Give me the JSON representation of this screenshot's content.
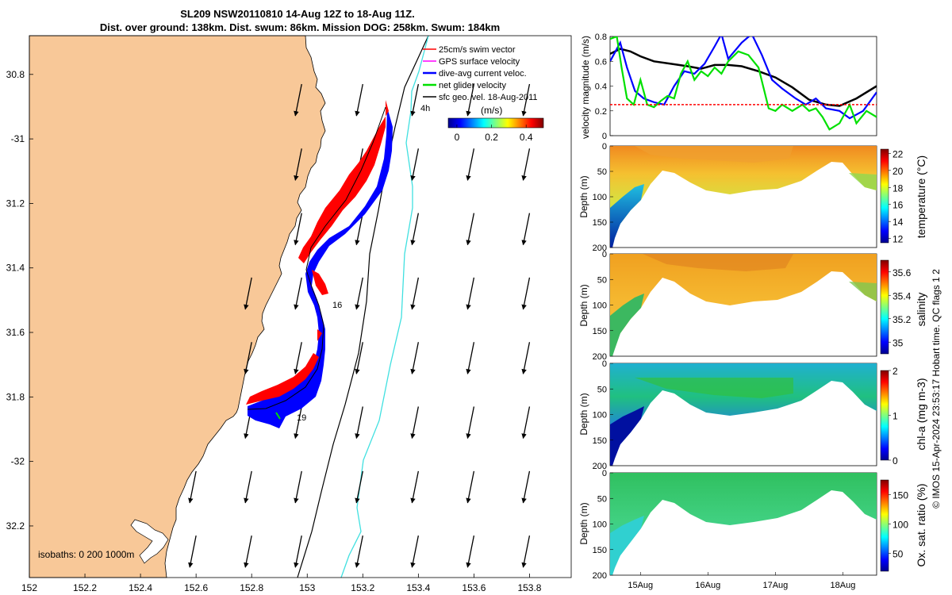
{
  "title_line1": "SL209 NSW20110810 14-Aug 12Z to 18-Aug 11Z.",
  "title_line2": "Dist. over ground: 138km. Dist. swum: 86km. Mission DOG: 258km. Swum: 184km",
  "footer": "© IMOS 15-Apr-2024 23:53:17 Hobart time. QC flags 1  2",
  "colors": {
    "land": "#f8c898",
    "swim": "#ff0000",
    "gps": "#ff00ff",
    "dive_avg": "#0000ff",
    "net": "#00e000",
    "sfc_geo": "#000000",
    "isobath_200": "#40e0e0",
    "isobath_1000": "#000000"
  },
  "chart_data": [
    {
      "type": "map",
      "name": "glider-track-map",
      "xlim": [
        152,
        153.95
      ],
      "ylim": [
        -32.36,
        -30.68
      ],
      "xticks": [
        152,
        152.2,
        152.4,
        152.6,
        152.8,
        153,
        153.2,
        153.4,
        153.6,
        153.8
      ],
      "xtick_labels": [
        "152",
        "152.2",
        "152.4",
        "152.6",
        "152.8",
        "153",
        "153.2",
        "153.4",
        "153.6",
        "153.8"
      ],
      "yticks": [
        -30.8,
        -31,
        -31.2,
        -31.4,
        -31.6,
        -31.8,
        -32,
        -32.2
      ],
      "ytick_labels": [
        "30.8",
        "-31",
        "31.2",
        "31.4",
        "31.6",
        "31.8",
        "-32",
        "32.2"
      ],
      "legend": [
        {
          "label": "25cm/s swim vector",
          "color": "#ff0000"
        },
        {
          "label": "GPS surface velocity",
          "color": "#ff00ff"
        },
        {
          "label": "dive-avg current veloc.",
          "color": "#0000ff"
        },
        {
          "label": "net glider velocity",
          "color": "#00e000"
        },
        {
          "label": "sfc geo. vel. 18-Aug-2011",
          "color": "#000000"
        }
      ],
      "legend_placement": "top-right",
      "colorbar": {
        "label": "(m/s)",
        "ticks": [
          0,
          0.2,
          0.4
        ],
        "tick_labels": [
          "0",
          "0.2",
          "0.4"
        ],
        "range": [
          -0.05,
          0.5
        ]
      },
      "isobaths_text": "isobaths: 0   200  1000m",
      "track_annotations": [
        "4h",
        "16",
        "19"
      ],
      "track": [
        {
          "lon": 153.27,
          "lat": -30.97
        },
        {
          "lon": 153.2,
          "lat": -31.12
        },
        {
          "lon": 153.1,
          "lat": -31.3
        },
        {
          "lon": 153.0,
          "lat": -31.4
        },
        {
          "lon": 152.98,
          "lat": -31.48
        },
        {
          "lon": 153.02,
          "lat": -31.6
        },
        {
          "lon": 153.01,
          "lat": -31.72
        },
        {
          "lon": 152.93,
          "lat": -31.83
        },
        {
          "lon": 152.8,
          "lat": -31.87
        }
      ],
      "geo_velocity_grid": {
        "lons": [
          152.6,
          152.8,
          152.98,
          153.2,
          153.4,
          153.6,
          153.8
        ],
        "lats": [
          -30.83,
          -31.03,
          -31.23,
          -31.43,
          -31.63,
          -31.83,
          -32.03,
          -32.23
        ],
        "u": -0.05,
        "v": -0.25
      }
    },
    {
      "type": "line",
      "name": "velocity-magnitude-timeseries",
      "ylabel": "velocity magnitude (m/s)",
      "ylim": [
        0,
        0.8
      ],
      "yticks": [
        0,
        0.2,
        0.4,
        0.6,
        0.8
      ],
      "ytick_labels": [
        "0",
        "0.2",
        "0.4",
        "0.6",
        "0.8"
      ],
      "xlim": [
        14.55,
        18.5
      ],
      "series": [
        {
          "color": "#000000",
          "x": [
            14.55,
            14.7,
            14.85,
            15.0,
            15.2,
            15.45,
            15.7,
            15.9,
            16.1,
            16.3,
            16.5,
            16.75,
            17.0,
            17.25,
            17.5,
            17.75,
            17.95,
            18.2,
            18.5
          ],
          "values": [
            0.66,
            0.7,
            0.68,
            0.64,
            0.6,
            0.58,
            0.56,
            0.54,
            0.57,
            0.57,
            0.56,
            0.52,
            0.47,
            0.39,
            0.29,
            0.25,
            0.24,
            0.3,
            0.4
          ]
        },
        {
          "color": "#0000ff",
          "x": [
            14.55,
            14.7,
            14.8,
            14.92,
            15.05,
            15.2,
            15.35,
            15.5,
            15.65,
            15.8,
            15.95,
            16.1,
            16.2,
            16.3,
            16.5,
            16.65,
            16.8,
            16.95,
            17.1,
            17.3,
            17.45,
            17.6,
            17.75,
            17.95,
            18.1,
            18.3,
            18.5
          ],
          "values": [
            0.6,
            0.75,
            0.55,
            0.36,
            0.3,
            0.27,
            0.25,
            0.4,
            0.52,
            0.5,
            0.58,
            0.72,
            0.82,
            0.62,
            0.75,
            0.82,
            0.65,
            0.45,
            0.38,
            0.3,
            0.25,
            0.3,
            0.22,
            0.2,
            0.14,
            0.2,
            0.35
          ]
        },
        {
          "color": "#00e000",
          "x": [
            14.55,
            14.65,
            14.72,
            14.8,
            14.9,
            15.0,
            15.1,
            15.2,
            15.3,
            15.4,
            15.5,
            15.6,
            15.7,
            15.8,
            15.9,
            16.0,
            16.1,
            16.2,
            16.3,
            16.45,
            16.6,
            16.75,
            16.9,
            17.0,
            17.1,
            17.25,
            17.4,
            17.5,
            17.6,
            17.7,
            17.8,
            17.95,
            18.1,
            18.2,
            18.35,
            18.5
          ],
          "values": [
            0.78,
            0.8,
            0.55,
            0.3,
            0.25,
            0.45,
            0.25,
            0.23,
            0.28,
            0.32,
            0.3,
            0.5,
            0.6,
            0.45,
            0.52,
            0.48,
            0.55,
            0.5,
            0.6,
            0.68,
            0.65,
            0.55,
            0.22,
            0.2,
            0.25,
            0.2,
            0.25,
            0.2,
            0.22,
            0.15,
            0.05,
            0.1,
            0.25,
            0.1,
            0.2,
            0.15
          ]
        },
        {
          "color": "#ff0000",
          "style": "dashed",
          "x": [
            14.55,
            18.5
          ],
          "values": [
            0.25,
            0.25
          ]
        }
      ]
    },
    {
      "type": "heatmap",
      "name": "temperature-section",
      "ylabel": "Depth (m)",
      "colorbar_label": "temperature (°C)",
      "ylim": [
        200,
        0
      ],
      "yticks": [
        0,
        50,
        100,
        150,
        200
      ],
      "ytick_labels": [
        "0",
        "50",
        "100",
        "150",
        "200"
      ],
      "colorbar_ticks": [
        12,
        14,
        16,
        18,
        20,
        22
      ],
      "colorbar_tick_labels": [
        "12",
        "14",
        "16",
        "18",
        "20",
        "22"
      ],
      "clim": [
        11.5,
        22.5
      ]
    },
    {
      "type": "heatmap",
      "name": "salinity-section",
      "ylabel": "Depth (m)",
      "colorbar_label": "salinity",
      "ylim": [
        200,
        0
      ],
      "yticks": [
        0,
        50,
        100,
        150,
        200
      ],
      "ytick_labels": [
        "0",
        "50",
        "100",
        "150",
        "200"
      ],
      "colorbar_ticks": [
        35,
        35.2,
        35.4,
        35.6
      ],
      "colorbar_tick_labels": [
        "35",
        "35.2",
        "35.4",
        "35.6"
      ],
      "clim": [
        34.9,
        35.7
      ]
    },
    {
      "type": "heatmap",
      "name": "chlorophyll-section",
      "ylabel": "Depth (m)",
      "colorbar_label": "chl-a (mg m-3)",
      "ylim": [
        200,
        0
      ],
      "yticks": [
        0,
        50,
        100,
        150,
        200
      ],
      "ytick_labels": [
        "0",
        "50",
        "100",
        "150",
        "200"
      ],
      "colorbar_ticks": [
        0,
        1,
        2
      ],
      "colorbar_tick_labels": [
        "0",
        "1",
        "2"
      ],
      "clim": [
        0,
        2
      ]
    },
    {
      "type": "heatmap",
      "name": "oxygen-section",
      "ylabel": "Depth (m)",
      "colorbar_label": "Ox. sat. ratio (%)",
      "ylim": [
        200,
        0
      ],
      "yticks": [
        0,
        50,
        100,
        150,
        200
      ],
      "ytick_labels": [
        "0",
        "50",
        "100",
        "150",
        "200"
      ],
      "colorbar_ticks": [
        50,
        100,
        150
      ],
      "colorbar_tick_labels": [
        "50",
        "100",
        "150"
      ],
      "clim": [
        20,
        175
      ],
      "xticks": [
        15,
        16,
        17,
        18
      ],
      "xtick_labels": [
        "15Aug",
        "16Aug",
        "17Aug",
        "18Aug"
      ],
      "xlim": [
        14.55,
        18.5
      ]
    }
  ]
}
